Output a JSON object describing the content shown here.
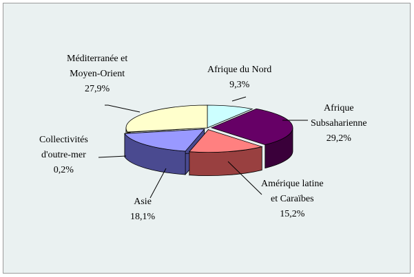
{
  "chart_data": {
    "type": "pie",
    "style": "3d-exploded-oval",
    "legend": "none",
    "slices": [
      {
        "label_lines": [
          "Afrique du Nord"
        ],
        "value_text": "9,3%",
        "value": 9.3,
        "color": "#ccffff",
        "side": "#99cccc"
      },
      {
        "label_lines": [
          "Afrique",
          "Subsaharienne"
        ],
        "value_text": "29,2%",
        "value": 29.2,
        "color": "#660066",
        "side": "#3a003a"
      },
      {
        "label_lines": [
          "Amérique latine",
          "et Caraïbes"
        ],
        "value_text": "15,2%",
        "value": 15.2,
        "color": "#ff8080",
        "side": "#994040"
      },
      {
        "label_lines": [
          "Asie"
        ],
        "value_text": "18,1%",
        "value": 18.1,
        "color": "#9999ff",
        "side": "#4a4a90"
      },
      {
        "label_lines": [
          "Collectivités",
          "d'outre-mer"
        ],
        "value_text": "0,2%",
        "value": 0.2,
        "color": "#993366",
        "side": "#66223f"
      },
      {
        "label_lines": [
          "Méditerranée et",
          "Moyen-Orient"
        ],
        "value_text": "27,9%",
        "value": 27.9,
        "color": "#ffffcc",
        "side": "#b8b88a"
      }
    ]
  }
}
